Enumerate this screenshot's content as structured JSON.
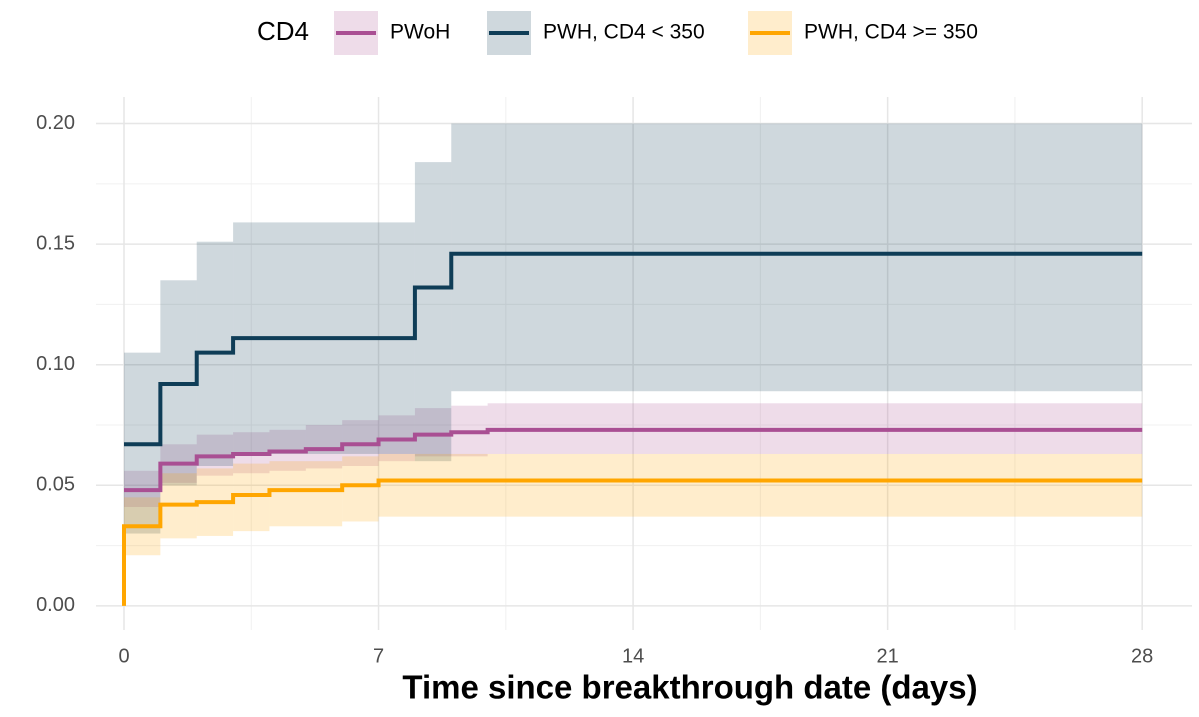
{
  "chart_data": {
    "type": "step",
    "x_label": "Time since breakthrough date (days)",
    "legend_title": "CD4",
    "legend_position": "top",
    "xlim": [
      -0.77,
      29.37
    ],
    "xticks": [
      0,
      7,
      14,
      21,
      28
    ],
    "ylim": [
      -0.01,
      0.211
    ],
    "yticks": [
      {
        "value": 0,
        "label": "0.00"
      },
      {
        "value": 0.05,
        "label": "0.05"
      },
      {
        "value": 0.1,
        "label": "0.10"
      },
      {
        "value": 0.15,
        "label": "0.15"
      },
      {
        "value": 0.2,
        "label": "0.20"
      }
    ],
    "grid": true,
    "minor_grid": true,
    "band_opacity": 0.2,
    "series": [
      {
        "name": "PWoH",
        "color": "#a94f93",
        "x": [
          0,
          1,
          2,
          3,
          4,
          5,
          6,
          7,
          8,
          9,
          10,
          28
        ],
        "values": [
          0.048,
          0.059,
          0.062,
          0.063,
          0.064,
          0.065,
          0.067,
          0.069,
          0.071,
          0.072,
          0.073,
          0.073
        ],
        "upper": [
          0.056,
          0.067,
          0.071,
          0.072,
          0.073,
          0.075,
          0.077,
          0.079,
          0.082,
          0.083,
          0.084,
          0.084
        ],
        "lower": [
          0.041,
          0.051,
          0.054,
          0.055,
          0.056,
          0.057,
          0.058,
          0.06,
          0.062,
          0.062,
          0.063,
          0.063
        ]
      },
      {
        "name": "PWH, CD4 < 350",
        "color": "#0f3d57",
        "x": [
          0,
          1,
          2,
          3,
          8,
          9,
          28
        ],
        "values": [
          0.067,
          0.092,
          0.105,
          0.111,
          0.132,
          0.146,
          0.146
        ],
        "upper": [
          0.105,
          0.135,
          0.151,
          0.159,
          0.184,
          0.2,
          0.2
        ],
        "lower": [
          0.03,
          0.05,
          0.058,
          0.063,
          0.06,
          0.089,
          0.089
        ]
      },
      {
        "name": "PWH, CD4 >= 350",
        "color": "#ffa600",
        "x": [
          0,
          0,
          1,
          2,
          3,
          4,
          6,
          7,
          28
        ],
        "values": [
          0,
          0.033,
          0.042,
          0.043,
          0.046,
          0.048,
          0.05,
          0.052,
          0.052
        ],
        "upper": [
          0,
          0.045,
          0.055,
          0.057,
          0.059,
          0.06,
          0.062,
          0.063,
          0.063
        ],
        "lower": [
          0,
          0.021,
          0.028,
          0.029,
          0.031,
          0.033,
          0.035,
          0.037,
          0.037
        ]
      }
    ]
  }
}
